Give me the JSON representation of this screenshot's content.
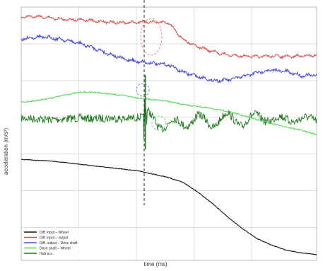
{
  "chart_data": {
    "type": "line",
    "title": "",
    "xlabel": "time (ms)",
    "ylabel": "acceleration (m/s²)",
    "grid": true,
    "legend_placement": "bottom-left",
    "event_marker": "dashed vertical line at the moment of impact",
    "highlight_markers": "dashed circles marking the transient response of the red, blue and green curves",
    "series": [
      {
        "name": "Diff. input – Wheel",
        "color": "#111111",
        "values": [
          0.74,
          0.75,
          0.76,
          0.78,
          0.8,
          0.82,
          0.84,
          0.86,
          0.88,
          0.92,
          0.96,
          1.02,
          1.14,
          1.28,
          1.44,
          1.58,
          1.7,
          1.78,
          1.84,
          1.87,
          1.89
        ]
      },
      {
        "name": "Diff. input – output",
        "color": "#d9534f",
        "values": [
          -0.98,
          -0.99,
          -0.97,
          -0.95,
          -0.95,
          -0.93,
          -0.92,
          -0.91,
          -0.92,
          -0.92,
          -0.91,
          -0.7,
          -0.62,
          -0.56,
          -0.52,
          -0.51,
          -0.5,
          -0.51,
          -0.5,
          -0.51,
          -0.52
        ]
      },
      {
        "name": "Diff. output – Drive shaft",
        "color": "#4a4adf",
        "values": [
          -0.71,
          -0.74,
          -0.73,
          -0.7,
          -0.66,
          -0.6,
          -0.53,
          -0.47,
          -0.44,
          -0.42,
          -0.4,
          -0.31,
          -0.26,
          -0.21,
          -0.22,
          -0.26,
          -0.31,
          -0.34,
          -0.32,
          -0.27,
          -0.28
        ]
      },
      {
        "name": "Drive shaft – Wheel",
        "color": "#5ed85e",
        "values": [
          0.05,
          0.03,
          0.0,
          -0.04,
          -0.07,
          -0.07,
          -0.05,
          -0.03,
          -0.0,
          0.02,
          0.04,
          0.08,
          0.1,
          0.13,
          0.16,
          0.21,
          0.26,
          0.31,
          0.35,
          0.39,
          0.44
        ]
      },
      {
        "name": "Hub acc.",
        "color": "#1e7a1e",
        "values": [
          0.24,
          0.25,
          0.26,
          0.25,
          0.24,
          0.25,
          0.24,
          0.25,
          0.23,
          0.25,
          0.34,
          0.28,
          0.26,
          0.3,
          0.22,
          0.3,
          0.22,
          0.26,
          0.25,
          0.26,
          0.25
        ]
      }
    ]
  }
}
